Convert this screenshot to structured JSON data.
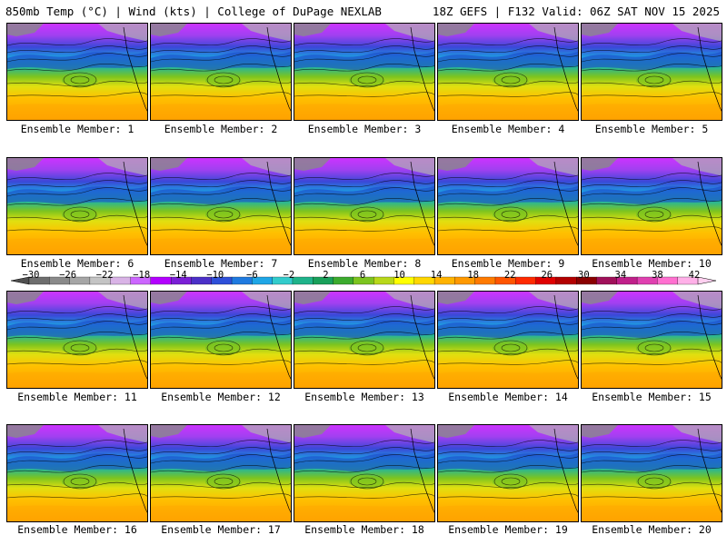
{
  "header": {
    "title_left": "850mb Temp (°C) | Wind (kts) | College of DuPage NEXLAB",
    "title_right": "18Z GEFS | F132 Valid: 06Z SAT NOV 15 2025"
  },
  "members": [
    {
      "label": "Ensemble Member: 1"
    },
    {
      "label": "Ensemble Member: 2"
    },
    {
      "label": "Ensemble Member: 3"
    },
    {
      "label": "Ensemble Member: 4"
    },
    {
      "label": "Ensemble Member: 5"
    },
    {
      "label": "Ensemble Member: 6"
    },
    {
      "label": "Ensemble Member: 7"
    },
    {
      "label": "Ensemble Member: 8"
    },
    {
      "label": "Ensemble Member: 9"
    },
    {
      "label": "Ensemble Member: 10"
    },
    {
      "label": "Ensemble Member: 11"
    },
    {
      "label": "Ensemble Member: 12"
    },
    {
      "label": "Ensemble Member: 13"
    },
    {
      "label": "Ensemble Member: 14"
    },
    {
      "label": "Ensemble Member: 15"
    },
    {
      "label": "Ensemble Member: 16"
    },
    {
      "label": "Ensemble Member: 17"
    },
    {
      "label": "Ensemble Member: 18"
    },
    {
      "label": "Ensemble Member: 19"
    },
    {
      "label": "Ensemble Member: 20"
    }
  ],
  "colorbar": {
    "tick_labels": [
      "−30",
      "−26",
      "−22",
      "−18",
      "−14",
      "−10",
      "−6",
      "−2",
      "2",
      "6",
      "10",
      "14",
      "18",
      "22",
      "26",
      "30",
      "34",
      "38",
      "42"
    ],
    "colors": [
      "#6e6e6e",
      "#8a8a8a",
      "#a6a6a6",
      "#c4c4c4",
      "#d9b3e6",
      "#cc66ff",
      "#b300ff",
      "#7a1fd6",
      "#4b30c8",
      "#2e4fd9",
      "#1f7ae0",
      "#1fa6e6",
      "#33cccc",
      "#1fb38a",
      "#19a05a",
      "#3cab2e",
      "#7cc41f",
      "#b8d81a",
      "#ffff00",
      "#ffd700",
      "#ffb300",
      "#ff9900",
      "#ff7a00",
      "#ff5500",
      "#ff2a00",
      "#e00000",
      "#b30000",
      "#8a0000",
      "#a0105a",
      "#c0208a",
      "#e040b0",
      "#ff70d0",
      "#ffb0e8"
    ]
  }
}
